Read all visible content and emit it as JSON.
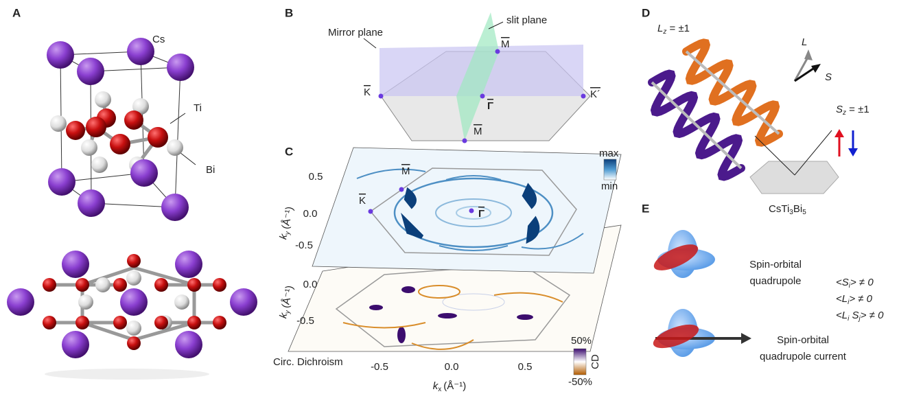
{
  "panel_labels": [
    "A",
    "B",
    "C",
    "D",
    "E"
  ],
  "structure": {
    "cs": "Cs",
    "ti": "Ti",
    "bi": "Bi"
  },
  "brillouin": {
    "mirror_plane": "Mirror plane",
    "slit_plane": "slit plane",
    "k": "K",
    "m_top": "M",
    "gamma": "Γ",
    "k_prime": "K´",
    "m_bottom": "M"
  },
  "arpes": {
    "m": "M",
    "k": "K",
    "gamma": "Γ",
    "colorbar_max": "max",
    "colorbar_min": "min",
    "top_yticks": [
      "0.5",
      "0.0",
      "-0.5"
    ],
    "cd_yticks": [
      "0.0",
      "-0.5"
    ],
    "ky": {
      "symbol": "k",
      "sub": "y",
      "unit": "(Å⁻¹)"
    },
    "kx": {
      "symbol": "k",
      "sub": "x",
      "unit": "(Å⁻¹)"
    },
    "xticks": [
      "-0.5",
      "0.0",
      "0.5"
    ],
    "cd_label": "Circ. Dichroism",
    "cd_colorbar": {
      "max": "50%",
      "min": "-50%",
      "title": "CD"
    }
  },
  "helicity": {
    "lz": {
      "symbol": "L",
      "sub": "z",
      "rest": " = ±1"
    },
    "l": "L",
    "s": "S",
    "sz": {
      "symbol": "S",
      "sub": "z",
      "rest": " = ±1"
    },
    "material": [
      "CsTi",
      "3",
      "Bi",
      "5"
    ]
  },
  "quadrupole": {
    "static": [
      "Spin-orbital",
      "quadrupole"
    ],
    "expectations": [
      [
        "<S",
        "i",
        "> ≠ 0"
      ],
      [
        "<L",
        "i",
        "> ≠ 0"
      ],
      [
        "<L",
        "i",
        " S",
        "j",
        "> ≠ 0"
      ]
    ],
    "current": [
      "Spin-orbital",
      "quadrupole current"
    ]
  }
}
